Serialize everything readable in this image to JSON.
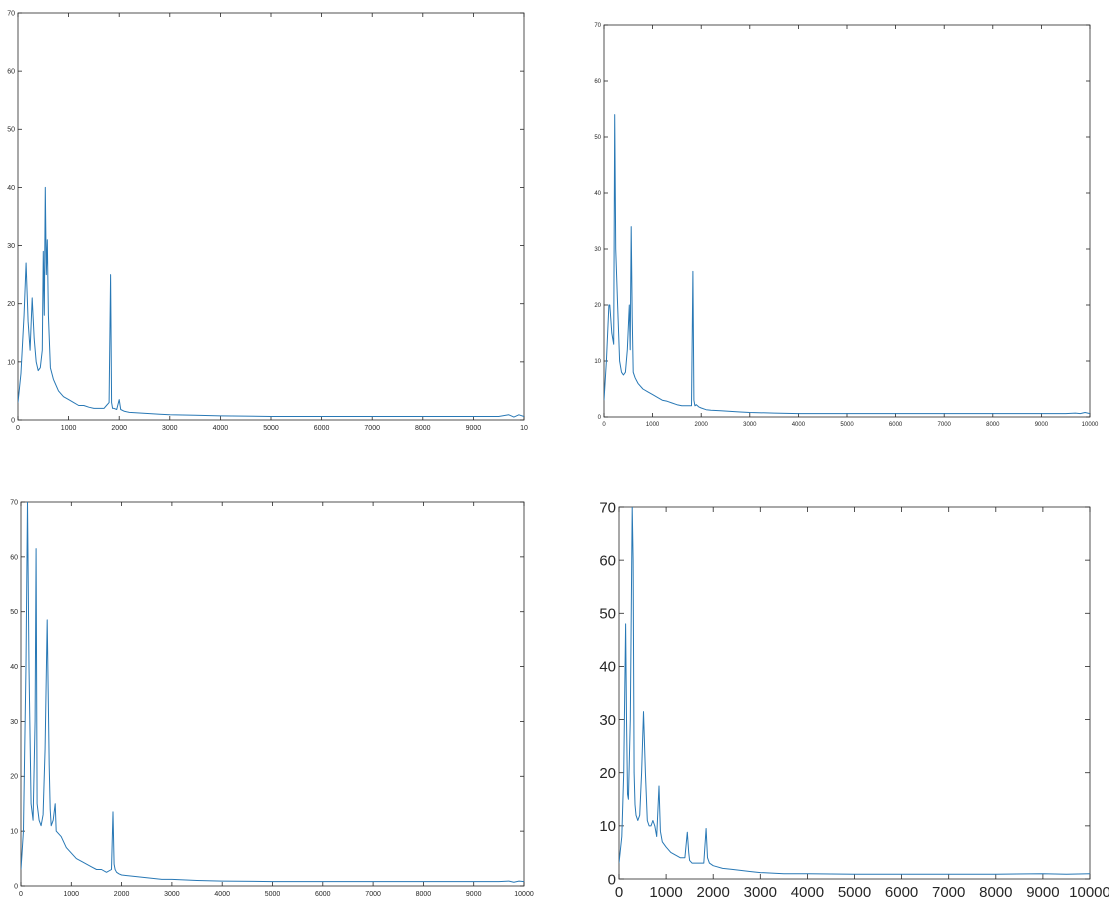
{
  "chart_data": [
    {
      "type": "line",
      "xlim": [
        0,
        10000
      ],
      "ylim": [
        0,
        70
      ],
      "xticks": [
        "0",
        "1000",
        "2000",
        "3000",
        "4000",
        "5000",
        "6000",
        "7000",
        "8000",
        "9000",
        "10"
      ],
      "yticks": [
        "0",
        "10",
        "20",
        "30",
        "40",
        "50",
        "60",
        "70"
      ],
      "grid": false,
      "line_color": "#2878b5",
      "x": [
        0,
        60,
        120,
        160,
        200,
        240,
        280,
        320,
        360,
        400,
        440,
        480,
        500,
        520,
        540,
        560,
        580,
        600,
        640,
        700,
        800,
        900,
        1000,
        1100,
        1200,
        1300,
        1400,
        1500,
        1600,
        1700,
        1750,
        1800,
        1830,
        1850,
        1870,
        1900,
        1950,
        2000,
        2030,
        2100,
        2200,
        2400,
        2600,
        2800,
        3000,
        3500,
        4000,
        5000,
        6000,
        7000,
        8000,
        9000,
        9500,
        9700,
        9800,
        9900,
        10000
      ],
      "y": [
        3,
        8,
        18,
        27,
        17,
        12,
        21,
        14,
        10,
        8.5,
        9,
        12,
        29,
        18,
        40,
        25,
        31,
        18,
        9,
        7,
        5,
        4,
        3.5,
        3,
        2.5,
        2.5,
        2.2,
        2,
        2,
        2,
        2.5,
        3,
        25,
        3,
        2,
        2,
        1.8,
        3.5,
        1.8,
        1.5,
        1.3,
        1.2,
        1.1,
        1,
        0.9,
        0.8,
        0.7,
        0.6,
        0.6,
        0.6,
        0.6,
        0.6,
        0.6,
        0.9,
        0.5,
        0.9,
        0.6
      ]
    },
    {
      "type": "line",
      "xlim": [
        0,
        10000
      ],
      "ylim": [
        0,
        70
      ],
      "xticks": [
        "0",
        "1000",
        "2000",
        "3000",
        "4000",
        "5000",
        "6000",
        "7000",
        "8000",
        "9000",
        "10000"
      ],
      "yticks": [
        "0",
        "10",
        "20",
        "30",
        "40",
        "50",
        "60",
        "70"
      ],
      "grid": false,
      "line_color": "#2878b5",
      "x": [
        0,
        50,
        100,
        120,
        160,
        200,
        220,
        240,
        280,
        320,
        360,
        400,
        440,
        480,
        520,
        540,
        560,
        580,
        600,
        640,
        700,
        800,
        900,
        1000,
        1100,
        1200,
        1300,
        1400,
        1500,
        1600,
        1700,
        1800,
        1830,
        1850,
        1870,
        1900,
        1950,
        2000,
        2100,
        2200,
        2400,
        2600,
        2800,
        3000,
        3500,
        4000,
        5000,
        6000,
        7000,
        8000,
        9000,
        9500,
        9700,
        9800,
        9900,
        10000
      ],
      "y": [
        3,
        10,
        20,
        20,
        15,
        13,
        54,
        30,
        20,
        10,
        8,
        7.5,
        8,
        12,
        20,
        12,
        34,
        18,
        8,
        7,
        6,
        5,
        4.5,
        4,
        3.5,
        3,
        2.8,
        2.5,
        2.2,
        2,
        2,
        2,
        26,
        3,
        2,
        2.2,
        1.8,
        1.6,
        1.3,
        1.2,
        1.1,
        1,
        0.9,
        0.8,
        0.7,
        0.6,
        0.6,
        0.6,
        0.6,
        0.6,
        0.6,
        0.6,
        0.7,
        0.6,
        0.8,
        0.6
      ]
    },
    {
      "type": "line",
      "xlim": [
        0,
        10000
      ],
      "ylim": [
        0,
        70
      ],
      "xticks": [
        "0",
        "1000",
        "2000",
        "3000",
        "4000",
        "5000",
        "6000",
        "7000",
        "8000",
        "9000",
        "10000"
      ],
      "yticks": [
        "0",
        "10",
        "20",
        "30",
        "40",
        "50",
        "60",
        "70"
      ],
      "grid": false,
      "line_color": "#2878b5",
      "x": [
        0,
        50,
        100,
        130,
        160,
        200,
        240,
        280,
        300,
        320,
        360,
        400,
        440,
        480,
        520,
        560,
        580,
        600,
        640,
        680,
        700,
        800,
        900,
        1000,
        1100,
        1200,
        1300,
        1400,
        1500,
        1600,
        1700,
        1800,
        1830,
        1850,
        1870,
        1900,
        1950,
        2000,
        2200,
        2500,
        2800,
        3000,
        3500,
        4000,
        5000,
        6000,
        7000,
        8000,
        9000,
        9500,
        9700,
        9800,
        9900,
        10000
      ],
      "y": [
        3,
        10,
        40,
        70,
        40,
        15,
        12,
        30,
        61.5,
        15,
        12,
        11,
        13,
        25,
        48.5,
        22,
        14,
        11,
        12,
        15,
        10,
        9,
        7,
        6,
        5,
        4.5,
        4,
        3.5,
        3,
        3,
        2.5,
        3,
        13.5,
        4,
        3,
        2.5,
        2.2,
        2,
        1.8,
        1.5,
        1.2,
        1.2,
        1,
        0.9,
        0.8,
        0.8,
        0.8,
        0.8,
        0.8,
        0.8,
        0.9,
        0.7,
        0.9,
        0.8
      ]
    },
    {
      "type": "line",
      "xlim": [
        0,
        10000
      ],
      "ylim": [
        0,
        70
      ],
      "xticks": [
        "0",
        "1000",
        "2000",
        "3000",
        "4000",
        "5000",
        "6000",
        "7000",
        "8000",
        "9000",
        "10000"
      ],
      "yticks": [
        "0",
        "10",
        "20",
        "30",
        "40",
        "50",
        "60",
        "70"
      ],
      "grid": false,
      "line_color": "#2878b5",
      "x": [
        0,
        60,
        100,
        140,
        160,
        180,
        200,
        240,
        280,
        300,
        320,
        340,
        360,
        400,
        440,
        480,
        520,
        560,
        600,
        640,
        680,
        720,
        760,
        800,
        850,
        880,
        920,
        1000,
        1100,
        1200,
        1300,
        1400,
        1450,
        1480,
        1500,
        1550,
        1600,
        1700,
        1800,
        1850,
        1880,
        1920,
        2000,
        2200,
        2400,
        2600,
        2800,
        3000,
        3500,
        4000,
        5000,
        6000,
        7000,
        8000,
        9000,
        9500,
        10000
      ],
      "y": [
        3,
        8,
        20,
        48,
        30,
        16,
        15,
        30,
        70,
        60,
        20,
        14,
        12,
        11,
        12,
        20,
        31.5,
        20,
        11,
        10,
        10,
        11,
        10,
        8,
        17.5,
        9,
        7,
        6,
        5,
        4.5,
        4,
        4,
        8.8,
        5,
        3.5,
        3,
        3,
        3,
        3,
        9.5,
        4,
        3,
        2.5,
        2,
        1.8,
        1.6,
        1.4,
        1.2,
        1,
        1,
        0.9,
        0.9,
        0.9,
        0.9,
        1,
        0.9,
        1
      ]
    }
  ]
}
